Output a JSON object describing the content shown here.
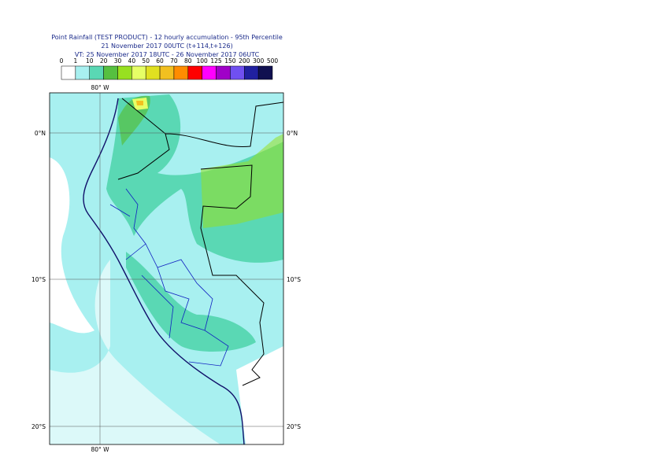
{
  "header": {
    "title": "Point Rainfall (TEST PRODUCT) - 12 hourly accumulation - 95th Percentile",
    "init": "21 November 2017 00UTC (t+114,t+126)",
    "valid": "VT: 25 November 2017 18UTC - 26 November 2017 06UTC"
  },
  "legend": {
    "labels": [
      "0",
      "1",
      "10",
      "20",
      "30",
      "40",
      "50",
      "60",
      "70",
      "80",
      "100",
      "125",
      "150",
      "200",
      "300",
      "500"
    ],
    "colors": [
      "#ffffff",
      "#a8f0f0",
      "#5ad8b4",
      "#56c040",
      "#98e020",
      "#e6ff66",
      "#e0e020",
      "#f2c020",
      "#ff8c00",
      "#ff0000",
      "#ff00ff",
      "#a000c8",
      "#7050f0",
      "#2020a0",
      "#101050"
    ]
  },
  "map": {
    "lon_labels": [
      "80° W"
    ],
    "lat_labels": [
      "0°N",
      "10°S",
      "20°S"
    ]
  }
}
